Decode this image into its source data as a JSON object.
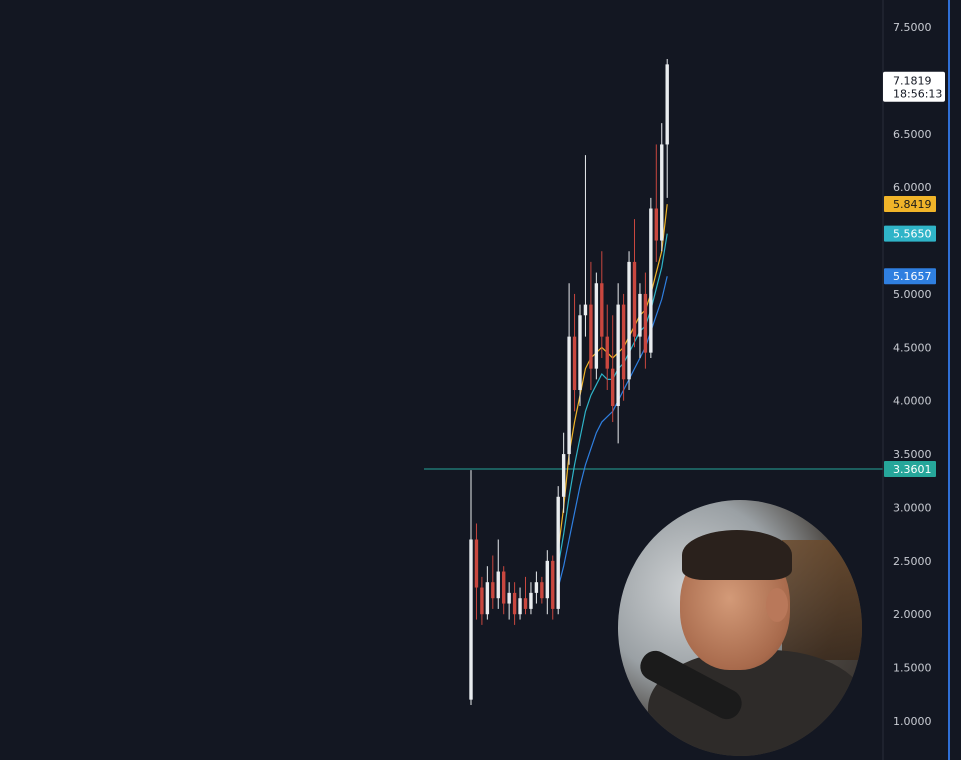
{
  "chart_data": {
    "type": "candlestick",
    "ylim": [
      0.8,
      7.6
    ],
    "y_ticks": [
      "7.5000",
      "6.5000",
      "6.0000",
      "5.0000",
      "4.5000",
      "4.0000",
      "3.5000",
      "3.0000",
      "2.5000",
      "2.0000",
      "1.5000",
      "1.0000"
    ],
    "y_tick_values": [
      7.5,
      6.5,
      6.0,
      5.0,
      4.5,
      4.0,
      3.5,
      3.0,
      2.5,
      2.0,
      1.5,
      1.0
    ],
    "current_price": "7.1819",
    "countdown": "18:56:13",
    "horizontal_line": {
      "value": 3.3601,
      "label": "3.3601",
      "color": "#26a69a"
    },
    "indicator_tags": [
      {
        "label": "5.8419",
        "value": 5.8419,
        "bg": "#f0b429",
        "fg": "#1b1b1b"
      },
      {
        "label": "5.5650",
        "value": 5.565,
        "bg": "#2fb4c8",
        "fg": "#ffffff"
      },
      {
        "label": "5.1657",
        "value": 5.1657,
        "bg": "#2f7fe0",
        "fg": "#ffffff"
      }
    ],
    "candles": [
      {
        "o": 1.2,
        "h": 3.35,
        "l": 1.15,
        "c": 2.7
      },
      {
        "o": 2.7,
        "h": 2.85,
        "l": 1.95,
        "c": 2.25
      },
      {
        "o": 2.25,
        "h": 2.35,
        "l": 1.9,
        "c": 2.0
      },
      {
        "o": 2.0,
        "h": 2.45,
        "l": 1.95,
        "c": 2.3
      },
      {
        "o": 2.3,
        "h": 2.55,
        "l": 2.05,
        "c": 2.15
      },
      {
        "o": 2.15,
        "h": 2.7,
        "l": 2.05,
        "c": 2.4
      },
      {
        "o": 2.4,
        "h": 2.45,
        "l": 2.0,
        "c": 2.1
      },
      {
        "o": 2.1,
        "h": 2.3,
        "l": 1.95,
        "c": 2.2
      },
      {
        "o": 2.2,
        "h": 2.3,
        "l": 1.9,
        "c": 2.0
      },
      {
        "o": 2.0,
        "h": 2.25,
        "l": 1.95,
        "c": 2.15
      },
      {
        "o": 2.15,
        "h": 2.35,
        "l": 2.0,
        "c": 2.05
      },
      {
        "o": 2.05,
        "h": 2.3,
        "l": 2.0,
        "c": 2.2
      },
      {
        "o": 2.2,
        "h": 2.4,
        "l": 2.1,
        "c": 2.3
      },
      {
        "o": 2.3,
        "h": 2.35,
        "l": 2.1,
        "c": 2.15
      },
      {
        "o": 2.15,
        "h": 2.6,
        "l": 2.0,
        "c": 2.5
      },
      {
        "o": 2.5,
        "h": 2.55,
        "l": 1.95,
        "c": 2.05
      },
      {
        "o": 2.05,
        "h": 3.2,
        "l": 2.0,
        "c": 3.1
      },
      {
        "o": 3.1,
        "h": 3.7,
        "l": 2.95,
        "c": 3.5
      },
      {
        "o": 3.5,
        "h": 5.1,
        "l": 3.4,
        "c": 4.6
      },
      {
        "o": 4.6,
        "h": 5.0,
        "l": 3.9,
        "c": 4.1
      },
      {
        "o": 4.1,
        "h": 4.9,
        "l": 3.95,
        "c": 4.8
      },
      {
        "o": 4.8,
        "h": 6.3,
        "l": 4.6,
        "c": 4.9
      },
      {
        "o": 4.9,
        "h": 5.3,
        "l": 4.1,
        "c": 4.3
      },
      {
        "o": 4.3,
        "h": 5.2,
        "l": 4.2,
        "c": 5.1
      },
      {
        "o": 5.1,
        "h": 5.4,
        "l": 4.4,
        "c": 4.6
      },
      {
        "o": 4.6,
        "h": 4.9,
        "l": 4.1,
        "c": 4.3
      },
      {
        "o": 4.3,
        "h": 4.8,
        "l": 3.8,
        "c": 3.95
      },
      {
        "o": 3.95,
        "h": 5.1,
        "l": 3.6,
        "c": 4.9
      },
      {
        "o": 4.9,
        "h": 5.0,
        "l": 4.0,
        "c": 4.2
      },
      {
        "o": 4.2,
        "h": 5.4,
        "l": 4.1,
        "c": 5.3
      },
      {
        "o": 5.3,
        "h": 5.7,
        "l": 4.5,
        "c": 4.6
      },
      {
        "o": 4.6,
        "h": 5.1,
        "l": 4.4,
        "c": 5.0
      },
      {
        "o": 5.0,
        "h": 5.2,
        "l": 4.3,
        "c": 4.45
      },
      {
        "o": 4.45,
        "h": 5.9,
        "l": 4.4,
        "c": 5.8
      },
      {
        "o": 5.8,
        "h": 6.4,
        "l": 5.3,
        "c": 5.5
      },
      {
        "o": 5.5,
        "h": 6.6,
        "l": 5.4,
        "c": 6.4
      },
      {
        "o": 6.4,
        "h": 7.2,
        "l": 5.9,
        "c": 7.15
      }
    ],
    "ema_series": [
      {
        "color": "#f0b429",
        "start": 16,
        "values": [
          2.6,
          3.0,
          3.5,
          3.8,
          4.05,
          4.3,
          4.4,
          4.45,
          4.5,
          4.45,
          4.4,
          4.45,
          4.5,
          4.6,
          4.7,
          4.8,
          4.85,
          5.0,
          5.2,
          5.4,
          5.84
        ]
      },
      {
        "color": "#2fb4c8",
        "start": 16,
        "values": [
          2.45,
          2.75,
          3.1,
          3.4,
          3.65,
          3.9,
          4.05,
          4.15,
          4.25,
          4.2,
          4.2,
          4.3,
          4.35,
          4.45,
          4.55,
          4.65,
          4.7,
          4.85,
          5.05,
          5.25,
          5.565
        ]
      },
      {
        "color": "#2f7fe0",
        "start": 16,
        "values": [
          2.25,
          2.45,
          2.7,
          2.95,
          3.2,
          3.4,
          3.55,
          3.7,
          3.8,
          3.85,
          3.9,
          4.0,
          4.1,
          4.2,
          4.3,
          4.4,
          4.5,
          4.65,
          4.8,
          4.95,
          5.1657
        ]
      }
    ]
  }
}
